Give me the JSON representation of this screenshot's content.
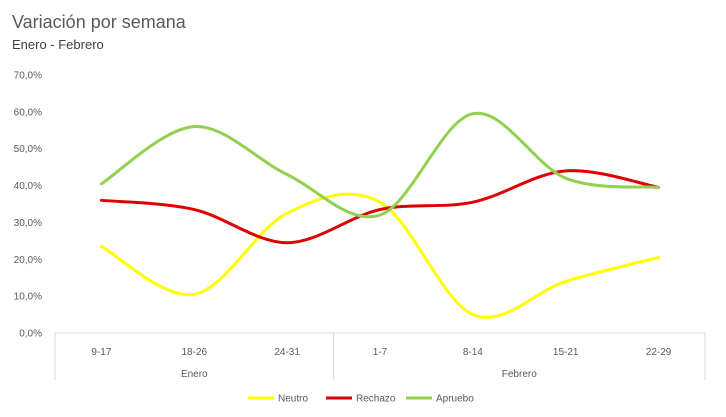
{
  "chart_data": {
    "type": "line",
    "title": "Variación por semana",
    "subtitle": "Enero - Febrero",
    "categories": [
      "9-17",
      "18-26",
      "24-31",
      "1-7",
      "8-14",
      "15-21",
      "22-29"
    ],
    "groups": [
      {
        "label": "Enero",
        "span": [
          0,
          2
        ]
      },
      {
        "label": "Febrero",
        "span": [
          3,
          6
        ]
      }
    ],
    "y_ticks": [
      "0,0%",
      "10,0%",
      "20,0%",
      "30,0%",
      "40,0%",
      "50,0%",
      "60,0%",
      "70,0%"
    ],
    "ylim": [
      0,
      70
    ],
    "grid": false,
    "smooth": true,
    "legend_position": "bottom",
    "series": [
      {
        "name": "Neutro",
        "color": "#FFFF00",
        "values": [
          23.5,
          10.5,
          32.5,
          35.5,
          5.0,
          14.0,
          20.5
        ]
      },
      {
        "name": "Rechazo",
        "color": "#E00000",
        "values": [
          36.0,
          33.5,
          24.5,
          33.5,
          35.5,
          44.0,
          39.5
        ]
      },
      {
        "name": "Apruebo",
        "color": "#92D050",
        "values": [
          40.5,
          56.0,
          43.0,
          32.0,
          59.5,
          42.0,
          39.5
        ]
      }
    ]
  }
}
